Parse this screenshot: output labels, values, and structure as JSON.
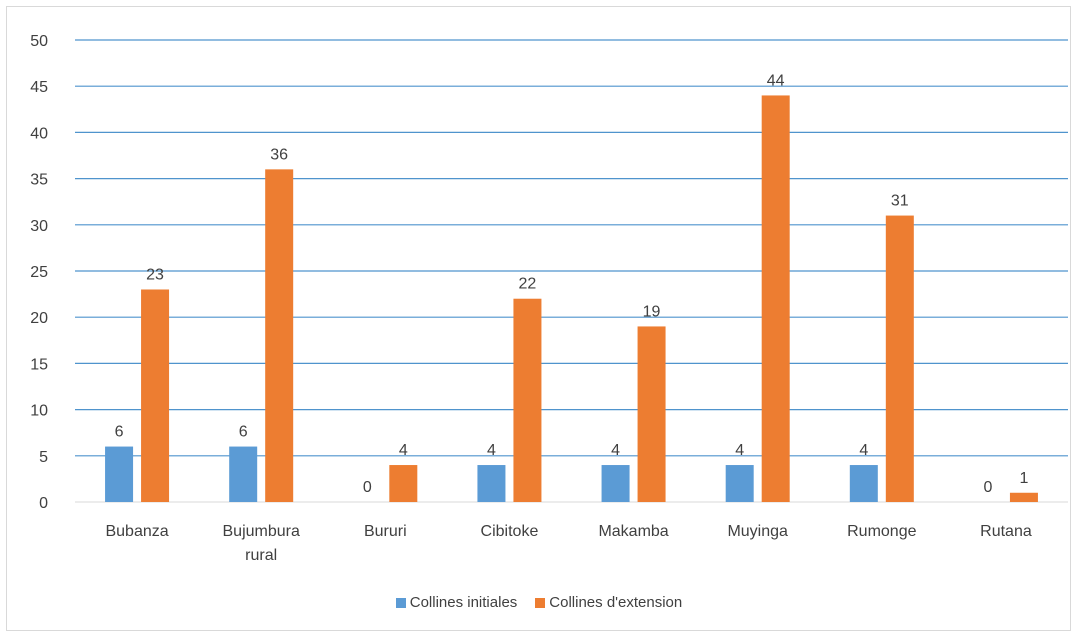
{
  "chart_data": {
    "type": "bar",
    "title": "",
    "xlabel": "",
    "ylabel": "",
    "categories": [
      "Bubanza",
      "Bujumbura rural",
      "Bururi",
      "Cibitoke",
      "Makamba",
      "Muyinga",
      "Rumonge",
      "Rutana"
    ],
    "category_lines": [
      [
        "Bubanza"
      ],
      [
        "Bujumbura",
        "rural"
      ],
      [
        "Bururi"
      ],
      [
        "Cibitoke"
      ],
      [
        "Makamba"
      ],
      [
        "Muyinga"
      ],
      [
        "Rumonge"
      ],
      [
        "Rutana"
      ]
    ],
    "series": [
      {
        "name": "Collines initiales",
        "color": "#5b9bd5",
        "values": [
          6,
          6,
          0,
          4,
          4,
          4,
          4,
          0
        ]
      },
      {
        "name": "Collines d'extension",
        "color": "#ed7d31",
        "values": [
          23,
          36,
          4,
          22,
          19,
          44,
          31,
          1
        ]
      }
    ],
    "ylim": [
      0,
      50
    ],
    "yticks": [
      0,
      5,
      10,
      15,
      20,
      25,
      30,
      35,
      40,
      45,
      50
    ],
    "grid": true,
    "gridline_color": "#4f94cd",
    "data_labels": true,
    "legend_position": "bottom"
  }
}
